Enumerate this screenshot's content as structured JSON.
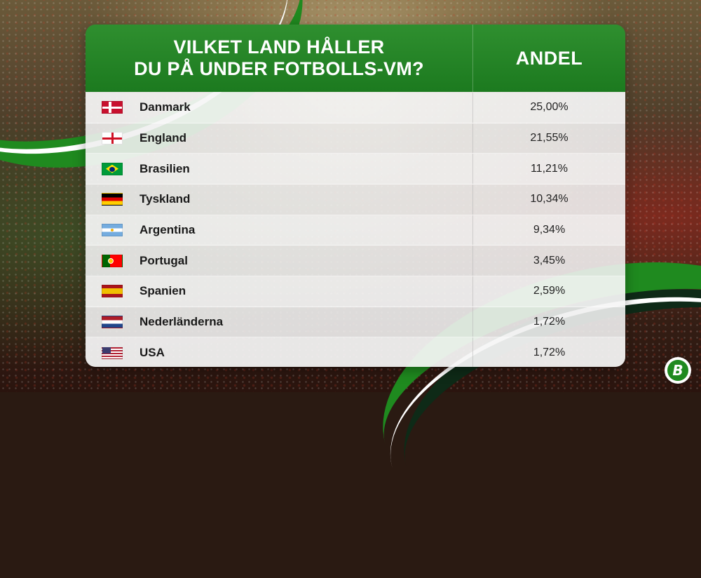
{
  "header": {
    "question_line1": "VILKET LAND HÅLLER",
    "question_line2": "DU PÅ UNDER FOTBOLLS-VM?",
    "share_label": "ANDEL"
  },
  "rows": [
    {
      "country": "Danmark",
      "share": "25,00%",
      "flag": "denmark-flag-icon"
    },
    {
      "country": "England",
      "share": "21,55%",
      "flag": "england-flag-icon"
    },
    {
      "country": "Brasilien",
      "share": "11,21%",
      "flag": "brazil-flag-icon"
    },
    {
      "country": "Tyskland",
      "share": "10,34%",
      "flag": "germany-flag-icon"
    },
    {
      "country": "Argentina",
      "share": "9,34%",
      "flag": "argentina-flag-icon"
    },
    {
      "country": "Portugal",
      "share": "3,45%",
      "flag": "portugal-flag-icon"
    },
    {
      "country": "Spanien",
      "share": "2,59%",
      "flag": "spain-flag-icon"
    },
    {
      "country": "Nederländerna",
      "share": "1,72%",
      "flag": "netherlands-flag-icon"
    },
    {
      "country": "USA",
      "share": "1,72%",
      "flag": "usa-flag-icon"
    }
  ],
  "logo": {
    "letter": "B"
  },
  "colors": {
    "brand_green": "#1f8a1f",
    "header_green": "#2f8f2f"
  }
}
